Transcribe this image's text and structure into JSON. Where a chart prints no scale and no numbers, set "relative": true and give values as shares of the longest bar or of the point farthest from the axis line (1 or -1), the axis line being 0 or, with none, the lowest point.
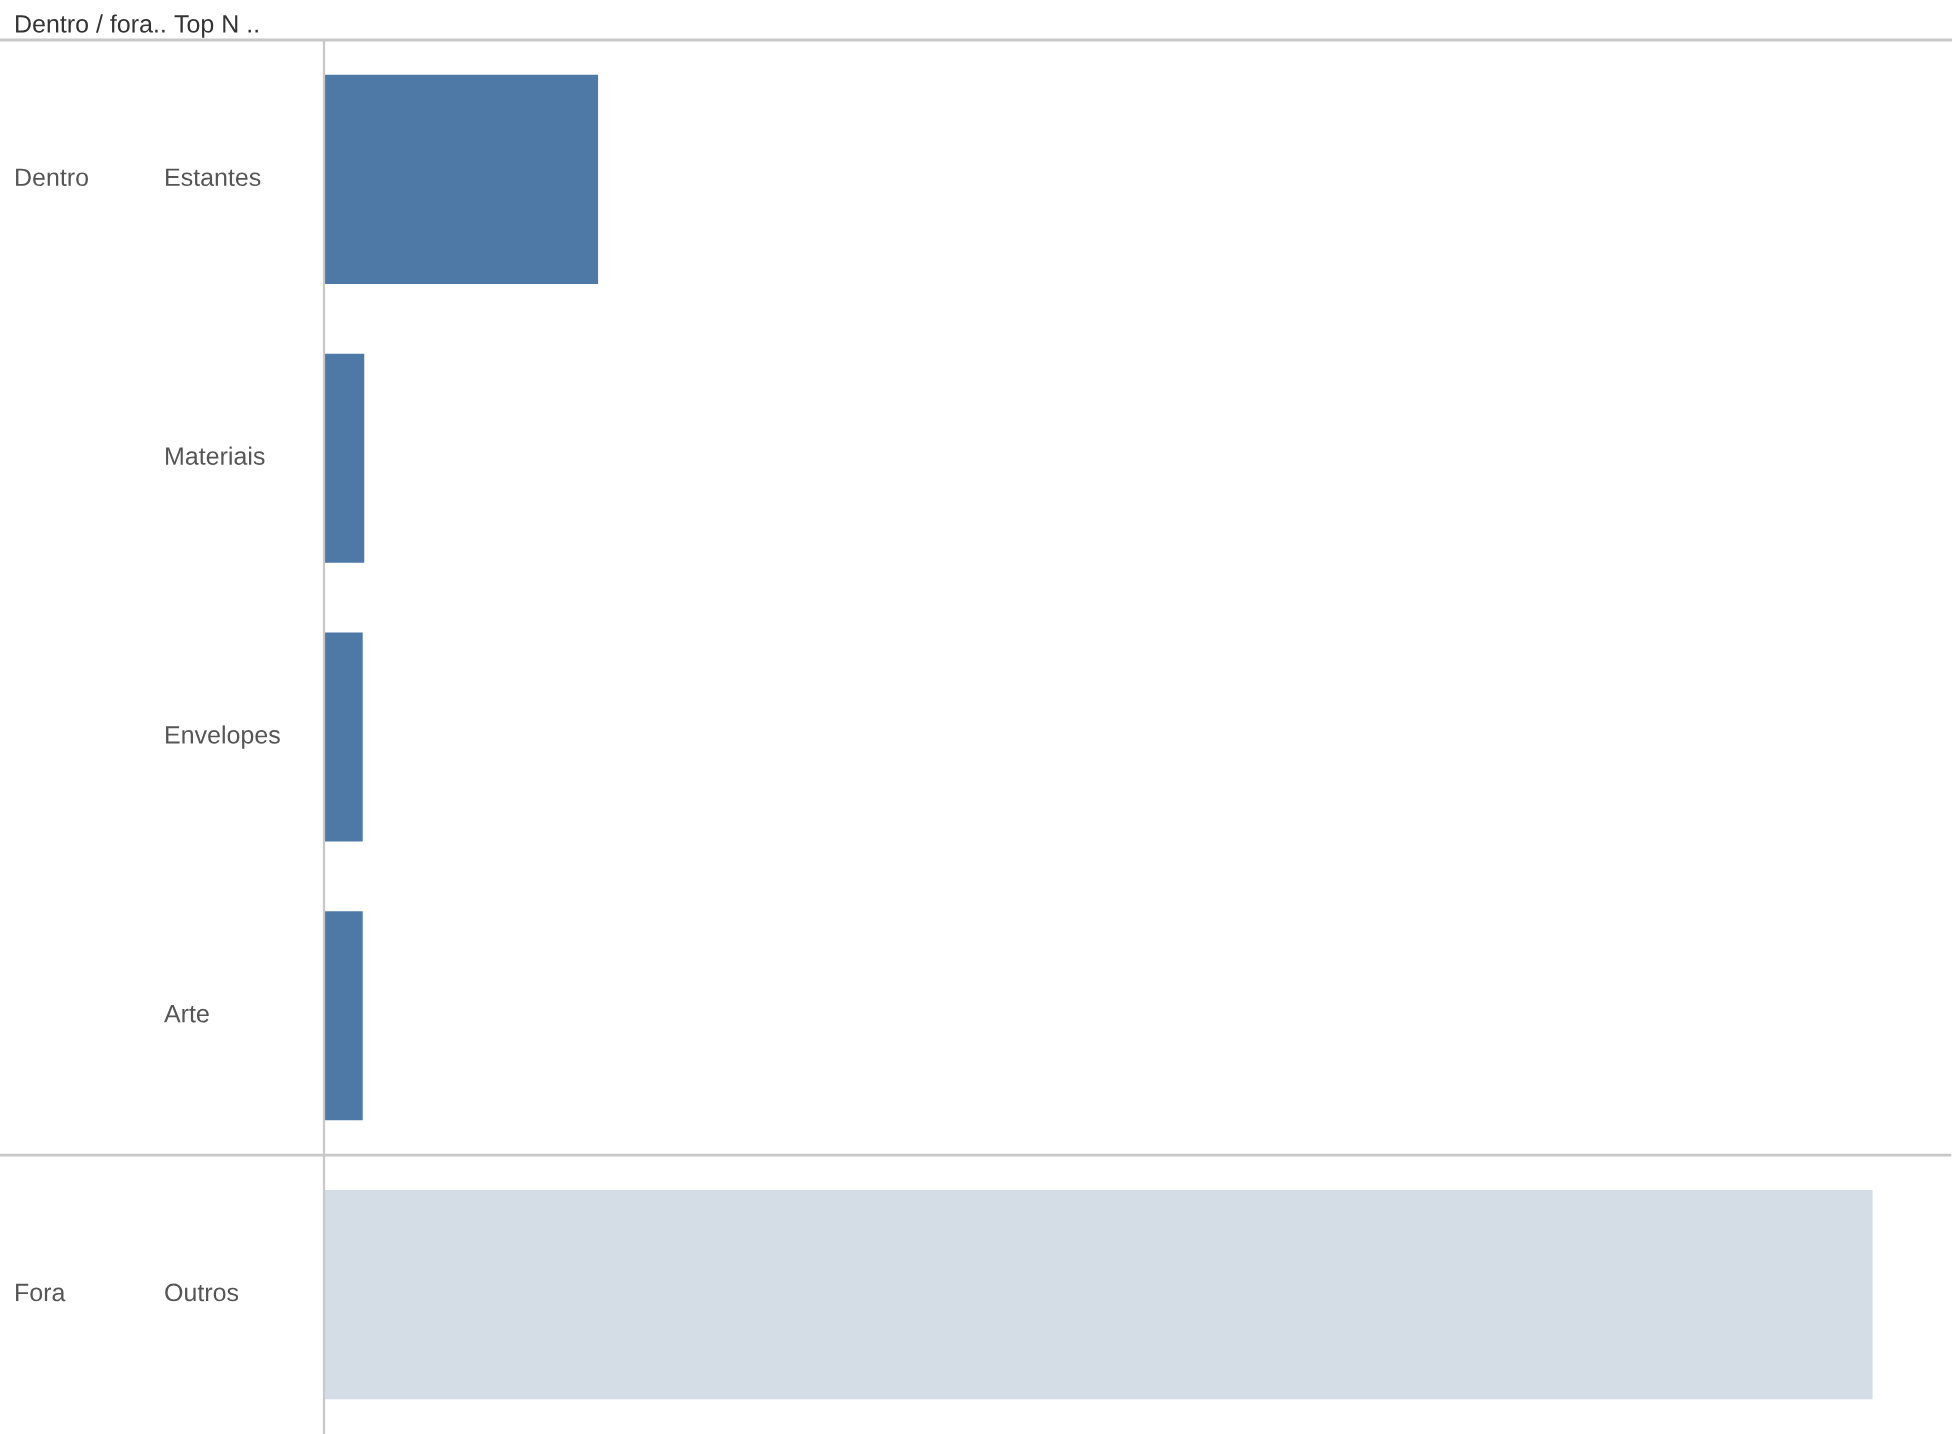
{
  "chart_data": {
    "type": "bar",
    "orientation": "horizontal",
    "relative": true,
    "categories": [
      "Estantes",
      "Materiais",
      "Envelopes",
      "Arte",
      "Outros"
    ],
    "values": [
      0.177,
      0.026,
      0.025,
      0.025,
      1
    ],
    "colors": [
      "#4e79a7",
      "#4e79a7",
      "#4e79a7",
      "#4e79a7",
      "#d4dde5"
    ],
    "annotations": [
      "Dentro / fora..",
      "Top N ..",
      "Dentro",
      "Fora"
    ]
  }
}
